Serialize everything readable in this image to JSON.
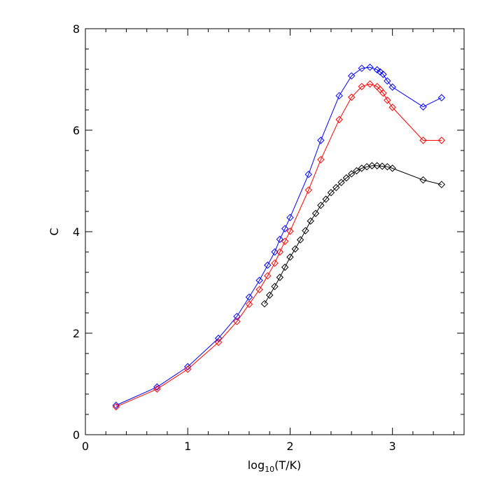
{
  "chart_data": {
    "type": "line",
    "title": "",
    "xlabel": "log",
    "xlabel_sub": "10",
    "xlabel_rest": "(T/K)",
    "ylabel": "C",
    "xlim": [
      0,
      3.7
    ],
    "ylim": [
      0,
      8
    ],
    "x_ticks": [
      0,
      1,
      2,
      3
    ],
    "x_tick_labels": [
      "0",
      "1",
      "2",
      "3"
    ],
    "y_ticks": [
      0,
      2,
      4,
      6,
      8
    ],
    "y_tick_labels": [
      "0",
      "2",
      "4",
      "6",
      "8"
    ],
    "grid": false,
    "marker": "diamond",
    "series": [
      {
        "color": "#0000ff",
        "x": [
          0.3,
          0.7,
          1.0,
          1.3,
          1.48,
          1.6,
          1.7,
          1.78,
          1.85,
          1.9,
          1.95,
          2.0,
          2.18,
          2.3,
          2.48,
          2.6,
          2.7,
          2.78,
          2.85,
          2.88,
          2.91,
          2.95,
          3.0,
          3.3,
          3.48
        ],
        "y": [
          0.58,
          0.94,
          1.34,
          1.9,
          2.33,
          2.71,
          3.04,
          3.34,
          3.6,
          3.85,
          4.06,
          4.28,
          5.13,
          5.8,
          6.68,
          7.07,
          7.22,
          7.24,
          7.19,
          7.15,
          7.1,
          6.97,
          6.85,
          6.46,
          6.64
        ]
      },
      {
        "color": "#ff0000",
        "x": [
          0.3,
          0.7,
          1.0,
          1.3,
          1.48,
          1.6,
          1.7,
          1.78,
          1.85,
          1.9,
          1.95,
          2.0,
          2.18,
          2.3,
          2.48,
          2.6,
          2.7,
          2.78,
          2.85,
          2.88,
          2.91,
          2.95,
          3.0,
          3.3,
          3.48
        ],
        "y": [
          0.55,
          0.9,
          1.29,
          1.82,
          2.23,
          2.57,
          2.86,
          3.13,
          3.38,
          3.6,
          3.81,
          4.01,
          4.82,
          5.42,
          6.21,
          6.65,
          6.86,
          6.91,
          6.86,
          6.8,
          6.73,
          6.59,
          6.45,
          5.8,
          5.8
        ]
      },
      {
        "color": "#000000",
        "x": [
          1.75,
          1.8,
          1.85,
          1.9,
          1.95,
          2.0,
          2.05,
          2.1,
          2.15,
          2.2,
          2.25,
          2.3,
          2.35,
          2.4,
          2.45,
          2.5,
          2.55,
          2.6,
          2.65,
          2.7,
          2.75,
          2.8,
          2.85,
          2.9,
          2.95,
          3.0,
          3.3,
          3.48
        ],
        "y": [
          2.58,
          2.75,
          2.92,
          3.1,
          3.3,
          3.5,
          3.66,
          3.84,
          4.02,
          4.21,
          4.36,
          4.52,
          4.64,
          4.77,
          4.87,
          4.97,
          5.06,
          5.14,
          5.2,
          5.25,
          5.28,
          5.3,
          5.3,
          5.29,
          5.28,
          5.25,
          5.02,
          4.93
        ]
      }
    ]
  }
}
